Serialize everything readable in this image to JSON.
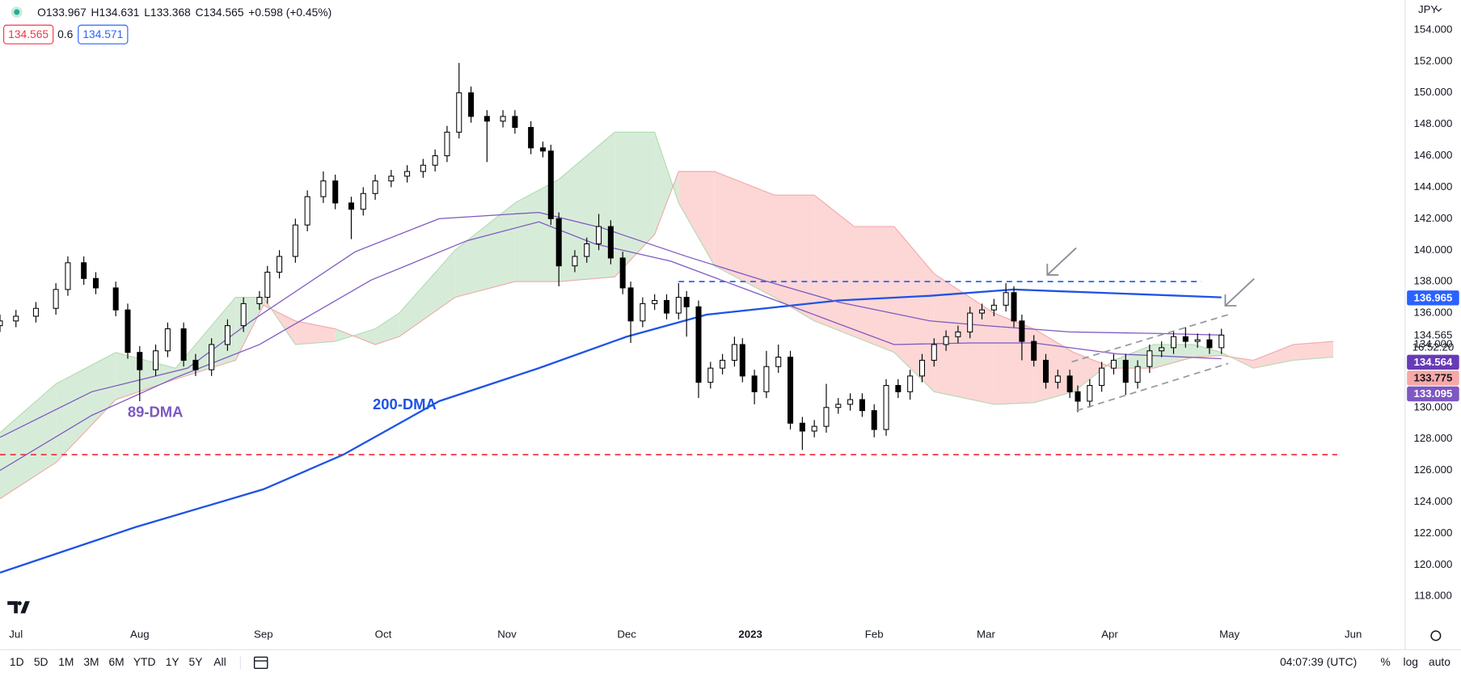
{
  "chart_data": {
    "type": "candlestick",
    "header": {
      "ohlc": [
        "O133.967",
        "H134.631",
        "L133.368",
        "C134.565",
        "+0.598 (+0.45%)"
      ],
      "bid": "134.565",
      "spread": "0.6",
      "ask": "134.571",
      "currency": "JPY"
    },
    "x": [
      -4,
      0,
      5,
      10,
      13,
      17,
      20,
      25,
      28,
      31,
      35,
      38,
      42,
      45,
      49,
      53,
      57,
      61,
      63,
      66,
      70,
      73,
      77,
      80,
      84,
      87,
      90,
      94,
      98,
      102,
      105,
      108,
      111,
      114,
      118,
      122,
      125,
      129,
      132,
      134,
      136,
      140,
      143,
      146,
      149,
      152,
      154,
      157,
      160,
      163,
      166,
      168,
      171,
      174,
      177,
      180,
      182,
      185,
      188,
      191,
      194,
      197,
      200,
      203,
      206,
      209,
      212,
      215,
      218,
      221,
      224,
      227,
      230,
      233,
      236,
      239,
      242,
      245,
      248,
      250,
      252,
      255,
      258,
      261,
      264,
      266,
      269,
      272,
      275,
      278,
      281,
      284,
      287,
      290,
      293,
      296,
      299,
      302
    ],
    "open": [
      135.2,
      135.5,
      135.8,
      136.3,
      137.5,
      139.2,
      138.2,
      137.6,
      136.2,
      133.5,
      132.4,
      133.6,
      135,
      133,
      132.4,
      134,
      135.2,
      136.6,
      137,
      138.6,
      139.6,
      141.6,
      143.4,
      144.4,
      143,
      142.6,
      143.6,
      144.4,
      144.7,
      145,
      145.4,
      146,
      147.5,
      150,
      148.5,
      148.2,
      148.5,
      147.8,
      146.5,
      146.3,
      142,
      139,
      139.6,
      140.4,
      141.5,
      139.5,
      137.6,
      135.5,
      136.6,
      136.8,
      136,
      137,
      136.4,
      131.6,
      132.5,
      133,
      134,
      132,
      131,
      132.6,
      133.2,
      129,
      128.5,
      128.8,
      130,
      130.2,
      130.5,
      129.8,
      128.6,
      131.4,
      131,
      132,
      133,
      134,
      134.5,
      134.8,
      136,
      136.2,
      136.5,
      137.3,
      135.5,
      134.2,
      133,
      131.6,
      132,
      131,
      130.4,
      131.4,
      132.5,
      133,
      131.6,
      132.6,
      133.6,
      133.8,
      134.5,
      134.2,
      134.3,
      133.8
    ],
    "high": [
      135.9,
      136.2,
      136.7,
      137.9,
      139.6,
      139.6,
      138.6,
      138.0,
      136.6,
      133.9,
      134.0,
      135.4,
      135.4,
      133.4,
      134.4,
      135.6,
      137.0,
      137.4,
      139.0,
      140.0,
      142.0,
      143.8,
      145.0,
      144.8,
      143.4,
      144.0,
      144.8,
      145.1,
      145.4,
      145.8,
      146.4,
      147.9,
      151.9,
      150.4,
      148.9,
      148.9,
      148.9,
      148.2,
      146.9,
      146.7,
      142.4,
      140.0,
      140.8,
      142.3,
      141.9,
      139.9,
      138.0,
      137.0,
      137.2,
      137.2,
      137.9,
      137.4,
      136.8,
      132.9,
      133.4,
      134.5,
      134.4,
      132.4,
      133.6,
      134.0,
      133.6,
      129.4,
      129.2,
      131.5,
      130.6,
      130.9,
      130.9,
      130.2,
      131.8,
      131.8,
      132.4,
      133.4,
      134.4,
      134.9,
      135.2,
      136.4,
      136.6,
      136.9,
      137.9,
      137.7,
      135.9,
      134.6,
      133.4,
      132.4,
      132.4,
      131.4,
      131.8,
      132.9,
      133.4,
      133.4,
      133.0,
      134.0,
      134.2,
      134.9,
      135.1,
      134.7,
      134.7,
      135.0
    ],
    "low": [
      134.8,
      135.1,
      135.4,
      135.9,
      137.1,
      137.8,
      137.2,
      135.8,
      133.1,
      130.4,
      132.0,
      133.2,
      132.6,
      132.0,
      132.0,
      133.6,
      134.8,
      136.2,
      136.6,
      138.2,
      139.2,
      141.2,
      143.0,
      142.6,
      140.7,
      142.2,
      143.2,
      144.0,
      144.3,
      144.6,
      145.0,
      145.6,
      147.1,
      148.1,
      145.6,
      147.8,
      147.4,
      146.1,
      145.9,
      141.6,
      137.7,
      138.6,
      139.2,
      140.0,
      139.1,
      137.2,
      134.1,
      135.1,
      136.2,
      135.6,
      135.6,
      134.5,
      130.6,
      131.2,
      132.1,
      132.6,
      131.6,
      130.2,
      130.6,
      132.2,
      128.6,
      127.3,
      128.1,
      128.4,
      129.6,
      129.8,
      129.4,
      128.1,
      128.2,
      130.6,
      130.5,
      131.6,
      132.6,
      133.6,
      134.1,
      134.4,
      135.6,
      135.8,
      136.1,
      135.1,
      133.0,
      132.6,
      131.2,
      131.2,
      130.6,
      129.7,
      130.0,
      131.0,
      132.1,
      130.8,
      131.2,
      132.2,
      133.2,
      133.4,
      133.8,
      133.8,
      133.4,
      133.4
    ],
    "close": [
      135.5,
      135.8,
      136.3,
      137.5,
      139.2,
      138.2,
      137.6,
      136.2,
      133.5,
      132.4,
      133.6,
      135,
      133,
      132.4,
      134,
      135.2,
      136.6,
      137,
      138.6,
      139.6,
      141.6,
      143.4,
      144.4,
      143,
      142.6,
      143.6,
      144.4,
      144.7,
      145,
      145.4,
      146,
      147.5,
      150,
      148.5,
      148.2,
      148.5,
      147.8,
      146.5,
      146.3,
      142,
      139,
      139.6,
      140.4,
      141.5,
      139.5,
      137.6,
      135.5,
      136.6,
      136.8,
      136,
      137,
      136.4,
      131.6,
      132.5,
      133,
      134,
      132,
      131,
      132.6,
      133.2,
      129,
      128.5,
      128.8,
      130,
      130.2,
      130.5,
      129.8,
      128.6,
      131.4,
      131,
      132,
      133,
      134,
      134.5,
      134.8,
      136,
      136.2,
      136.5,
      137.3,
      135.5,
      134.2,
      133,
      131.6,
      132,
      131,
      130.4,
      131.4,
      132.5,
      133,
      131.6,
      132.6,
      133.6,
      133.8,
      134.5,
      134.2,
      134.3,
      133.8,
      134.6
    ],
    "up_color": "#ffffff",
    "down_color": "#000000",
    "outline_color": "#000000",
    "xlim": [
      -4,
      348
    ],
    "ylim": [
      116.5,
      155.9
    ],
    "xticks": [
      {
        "value": 0,
        "label": "Jul"
      },
      {
        "value": 31,
        "label": "Aug"
      },
      {
        "value": 62,
        "label": "Sep"
      },
      {
        "value": 92,
        "label": "Oct"
      },
      {
        "value": 123,
        "label": "Nov"
      },
      {
        "value": 153,
        "label": "Dec"
      },
      {
        "value": 184,
        "label": "2023"
      },
      {
        "value": 215,
        "label": "Feb"
      },
      {
        "value": 243,
        "label": "Mar"
      },
      {
        "value": 274,
        "label": "Apr"
      },
      {
        "value": 304,
        "label": "May"
      },
      {
        "value": 335,
        "label": "Jun"
      }
    ],
    "yticks": [
      {
        "value": 118,
        "label": "118.000"
      },
      {
        "value": 120,
        "label": "120.000"
      },
      {
        "value": 122,
        "label": "122.000"
      },
      {
        "value": 124,
        "label": "124.000"
      },
      {
        "value": 126,
        "label": "126.000"
      },
      {
        "value": 128,
        "label": "128.000"
      },
      {
        "value": 130,
        "label": "130.000"
      },
      {
        "value": 132,
        "label": "132.000"
      },
      {
        "value": 134,
        "label": "134.000"
      },
      {
        "value": 136,
        "label": "136.000"
      },
      {
        "value": 138,
        "label": "138.000"
      },
      {
        "value": 140,
        "label": "140.000"
      },
      {
        "value": 142,
        "label": "142.000"
      },
      {
        "value": 144,
        "label": "144.000"
      },
      {
        "value": 146,
        "label": "146.000"
      },
      {
        "value": 148,
        "label": "148.000"
      },
      {
        "value": 150,
        "label": "150.000"
      },
      {
        "value": 152,
        "label": "152.000"
      },
      {
        "value": 154,
        "label": "154.000"
      }
    ],
    "grid": false,
    "series": [
      {
        "name": "200-DMA",
        "color": "#1e53e5",
        "x": [
          -4,
          30,
          62,
          82,
          106,
          131,
          153,
          173,
          206,
          229,
          250,
          260,
          276,
          302
        ],
        "values": [
          119.5,
          122.4,
          124.8,
          127,
          130.4,
          132.5,
          134.5,
          135.9,
          136.8,
          137.1,
          137.5,
          137.4,
          137.25,
          137
        ]
      },
      {
        "name": "89-DMA",
        "color": "#7e57c2",
        "x": [
          -4,
          19,
          40,
          61,
          89,
          113,
          131,
          145,
          164,
          183,
          201,
          220,
          239,
          255,
          276,
          302
        ],
        "values": [
          126,
          129.5,
          131.9,
          134,
          138.1,
          140.6,
          141.8,
          140.4,
          139.3,
          137.5,
          135.8,
          134,
          134.1,
          134.1,
          133.4,
          133.1
        ]
      },
      {
        "color": "#7e57c2",
        "x": [
          -4,
          19,
          43,
          59,
          85,
          106,
          131,
          147,
          168,
          187,
          206,
          229,
          243,
          264,
          287,
          302
        ],
        "values": [
          128.1,
          131,
          132.5,
          135.5,
          139.9,
          142,
          142.4,
          141.4,
          139.6,
          138.1,
          136.7,
          135.5,
          135.2,
          134.8,
          134.7,
          134.6
        ]
      }
    ],
    "cloud": {
      "x": [
        -4,
        10,
        25,
        40,
        55,
        62,
        70,
        80,
        90,
        96,
        110,
        125,
        136,
        150,
        160,
        166,
        175,
        190,
        200,
        210,
        220,
        230,
        245,
        255,
        265,
        275,
        285,
        295,
        302,
        310,
        320,
        330
      ],
      "span_a": [
        128.4,
        131.5,
        133.5,
        132.5,
        137,
        137,
        134,
        134.2,
        135,
        136,
        140,
        143,
        144.5,
        147.5,
        147.5,
        143,
        139,
        137,
        135.5,
        134.5,
        133.5,
        131,
        130.2,
        130.3,
        131,
        133,
        134,
        134,
        133.5,
        132.5,
        133,
        133.2
      ],
      "span_b": [
        124.2,
        126.5,
        130.5,
        131.8,
        133,
        136.5,
        135.5,
        135,
        134,
        134.5,
        137,
        138,
        138,
        138.3,
        141,
        145,
        145,
        143.5,
        143.5,
        141.5,
        141.5,
        138.5,
        136,
        135,
        133.5,
        132.5,
        132.5,
        133.2,
        133.3,
        133,
        134,
        134.2
      ],
      "up_color": "#d7ecd8",
      "down_color": "#fcd7d6",
      "span_a_color": "#a5d6a7",
      "span_b_color": "#ef9a9a"
    },
    "levels": [
      {
        "value": 138,
        "x": [
          166,
          297
        ],
        "color": "#2962ff"
      },
      {
        "value": 127,
        "x": [
          -4,
          331
        ],
        "color": "#f23645"
      }
    ],
    "channel": {
      "color": "#9598a1",
      "lines": [
        {
          "x": [
            264.5,
            303.7
          ],
          "values": [
            132.9,
            135.9
          ]
        },
        {
          "x": [
            265.7,
            303.7
          ],
          "values": [
            129.8,
            132.8
          ]
        }
      ]
    },
    "last_price": {
      "value": 134.565,
      "label": "134.565",
      "countdown": "16:52:20"
    },
    "price_tags": [
      {
        "value": 136.965,
        "label": "136.965",
        "color": "#2962ff",
        "text_color": "#ffffff"
      },
      {
        "value": 134.564,
        "label": "134.564",
        "color": "#673ab7",
        "text_color": "#ffffff"
      },
      {
        "value": 133.775,
        "label": "133.775",
        "color": "#f7a8a6",
        "text_color": "#131722"
      },
      {
        "value": 133.095,
        "label": "133.095",
        "color": "#7e57c2",
        "text_color": "#ffffff"
      }
    ],
    "toolbar": {
      "ranges": [
        "1D",
        "5D",
        "1M",
        "3M",
        "6M",
        "YTD",
        "1Y",
        "5Y",
        "All"
      ],
      "clock": "04:07:39 (UTC)",
      "options": [
        "%",
        "log",
        "auto"
      ]
    }
  }
}
